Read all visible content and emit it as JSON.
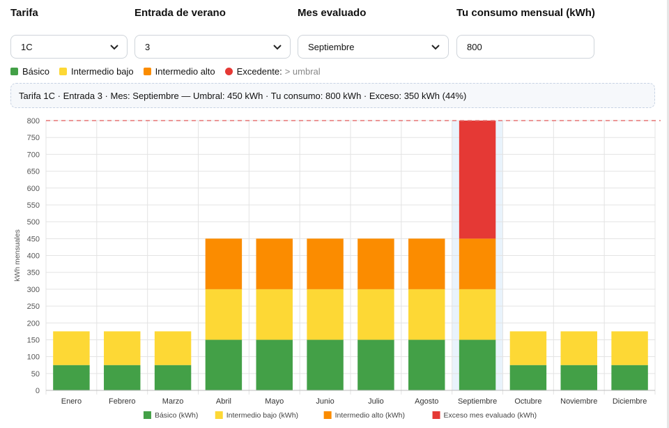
{
  "form": {
    "tarifa": {
      "label": "Tarifa",
      "value": "1C"
    },
    "entrada": {
      "label": "Entrada de verano",
      "value": "3"
    },
    "mes": {
      "label": "Mes evaluado",
      "value": "Septiembre"
    },
    "consumo": {
      "label": "Tu consumo mensual (kWh)",
      "value": "800"
    }
  },
  "legend_top": [
    {
      "label": "Básico",
      "color": "#43a047",
      "shape": "square"
    },
    {
      "label": "Intermedio bajo",
      "color": "#fdd835",
      "shape": "square"
    },
    {
      "label": "Intermedio alto",
      "color": "#fb8c00",
      "shape": "square"
    },
    {
      "label": "Excedente:",
      "color": "#e53935",
      "shape": "circle",
      "note": "> umbral"
    }
  ],
  "summary": "Tarifa 1C · Entrada 3 · Mes: Septiembre — Umbral: 450 kWh · Tu consumo: 800 kWh · Exceso: 350 kWh (44%)",
  "chart_data": {
    "type": "bar",
    "stacked": true,
    "categories": [
      "Enero",
      "Febrero",
      "Marzo",
      "Abril",
      "Mayo",
      "Junio",
      "Julio",
      "Agosto",
      "Septiembre",
      "Octubre",
      "Noviembre",
      "Diciembre"
    ],
    "series": [
      {
        "name": "Básico (kWh)",
        "color": "#43a047",
        "values": [
          75,
          75,
          75,
          150,
          150,
          150,
          150,
          150,
          150,
          75,
          75,
          75
        ]
      },
      {
        "name": "Intermedio bajo (kWh)",
        "color": "#fdd835",
        "values": [
          100,
          100,
          100,
          150,
          150,
          150,
          150,
          150,
          150,
          100,
          100,
          100
        ]
      },
      {
        "name": "Intermedio alto (kWh)",
        "color": "#fb8c00",
        "values": [
          0,
          0,
          0,
          150,
          150,
          150,
          150,
          150,
          150,
          0,
          0,
          0
        ]
      },
      {
        "name": "Exceso mes evaluado (kWh)",
        "color": "#e53935",
        "values": [
          0,
          0,
          0,
          0,
          0,
          0,
          0,
          0,
          350,
          0,
          0,
          0
        ]
      }
    ],
    "ylabel": "kWh mensuales",
    "xlabel": "",
    "ylim": [
      0,
      800
    ],
    "ytick_step": 50,
    "reference_line": {
      "value": 800,
      "color": "#e57373",
      "style": "dashed"
    },
    "highlight_category": "Septiembre",
    "grid": true,
    "legend_position": "bottom"
  }
}
